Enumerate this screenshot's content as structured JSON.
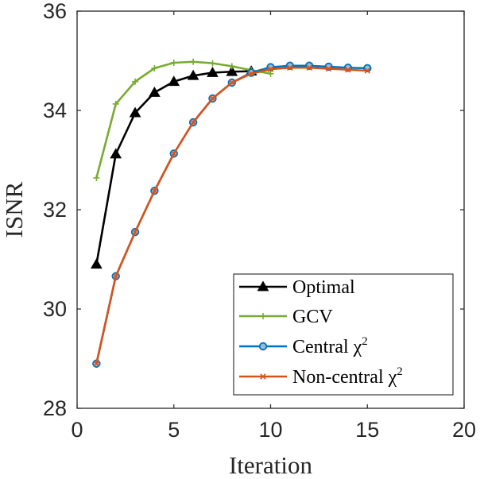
{
  "chart_data": {
    "type": "line",
    "title": "",
    "xlabel": "Iteration",
    "ylabel": "ISNR",
    "xlim": [
      0,
      20
    ],
    "ylim": [
      28,
      36
    ],
    "xticks": [
      0,
      5,
      10,
      15,
      20
    ],
    "yticks": [
      28,
      30,
      32,
      34,
      36
    ],
    "grid": false,
    "legend_position": "bottom-right",
    "series": [
      {
        "name": "Optimal",
        "legend_text": "Optimal",
        "legend_sup": "",
        "color": "#000000",
        "marker": "triangle",
        "x": [
          1,
          2,
          3,
          4,
          5,
          6,
          7,
          8,
          9
        ],
        "y": [
          30.9,
          33.12,
          33.95,
          34.36,
          34.58,
          34.7,
          34.76,
          34.78,
          34.79
        ]
      },
      {
        "name": "GCV",
        "legend_text": "GCV",
        "legend_sup": "",
        "color": "#77AC30",
        "marker": "plus",
        "x": [
          1,
          2,
          3,
          4,
          5,
          6,
          7,
          8,
          9,
          10
        ],
        "y": [
          32.64,
          34.13,
          34.58,
          34.85,
          34.96,
          34.98,
          34.95,
          34.89,
          34.81,
          34.74
        ]
      },
      {
        "name": "Central χ2",
        "legend_text": "Central χ",
        "legend_sup": "2",
        "color": "#0072BD",
        "marker": "circle",
        "x": [
          1,
          2,
          3,
          4,
          5,
          6,
          7,
          8,
          9,
          10,
          11,
          12,
          13,
          14,
          15
        ],
        "y": [
          28.9,
          30.66,
          31.55,
          32.38,
          33.13,
          33.76,
          34.24,
          34.56,
          34.76,
          34.87,
          34.9,
          34.9,
          34.88,
          34.86,
          34.85
        ]
      },
      {
        "name": "Non-central χ2",
        "legend_text": "Non-central χ",
        "legend_sup": "2",
        "color": "#D95319",
        "marker": "x",
        "x": [
          1,
          2,
          3,
          4,
          5,
          6,
          7,
          8,
          9,
          10,
          11,
          12,
          13,
          14,
          15
        ],
        "y": [
          28.9,
          30.66,
          31.55,
          32.38,
          33.13,
          33.76,
          34.24,
          34.56,
          34.74,
          34.83,
          34.86,
          34.86,
          34.84,
          34.82,
          34.8
        ]
      }
    ]
  }
}
